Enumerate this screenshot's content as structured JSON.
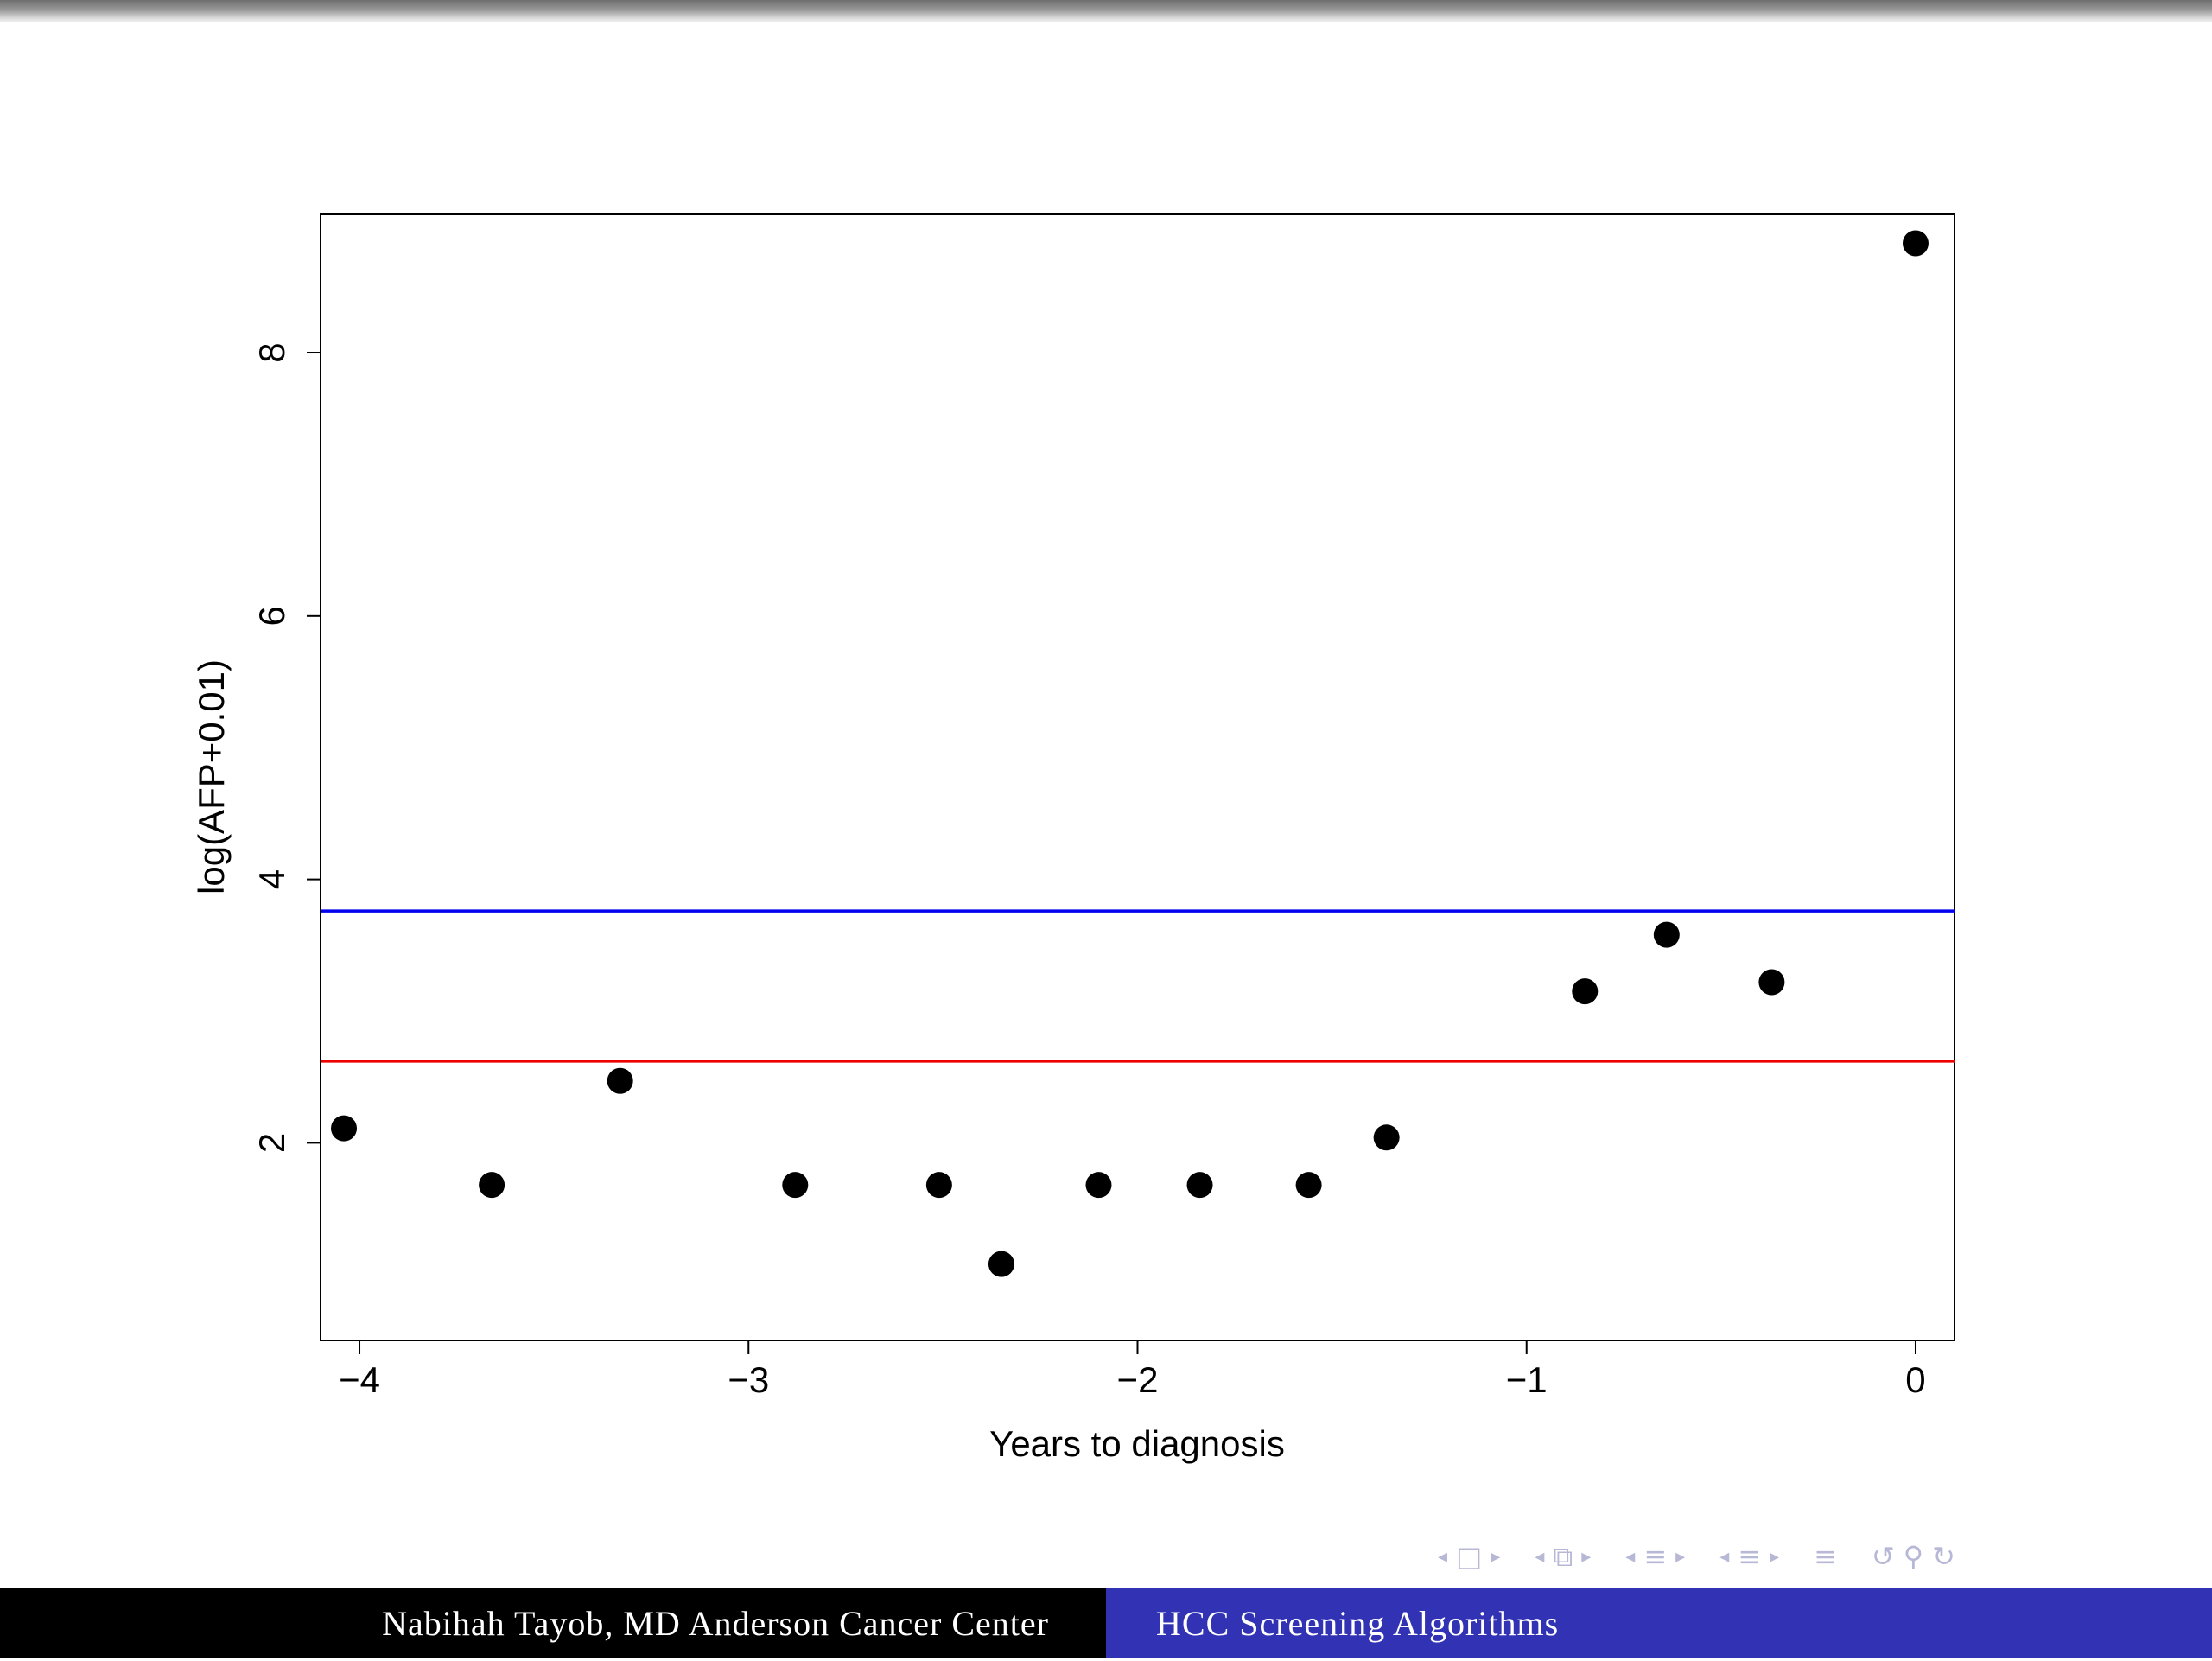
{
  "chart_data": {
    "type": "scatter",
    "title": "",
    "xlabel": "Years to diagnosis",
    "ylabel": "log(AFP+0.01)",
    "xlim": [
      -4.1,
      0.1
    ],
    "ylim": [
      0.5,
      9.05
    ],
    "x_ticks": [
      -4,
      -3,
      -2,
      -1,
      0
    ],
    "x_tick_labels": [
      "−4",
      "−3",
      "−2",
      "−1",
      "0"
    ],
    "y_ticks": [
      2,
      4,
      6,
      8
    ],
    "y_tick_labels": [
      "2",
      "4",
      "6",
      "8"
    ],
    "grid": false,
    "legend": "none",
    "points": [
      {
        "x": -4.04,
        "y": 2.11
      },
      {
        "x": -3.66,
        "y": 1.68
      },
      {
        "x": -3.33,
        "y": 2.47
      },
      {
        "x": -2.88,
        "y": 1.68
      },
      {
        "x": -2.51,
        "y": 1.68
      },
      {
        "x": -2.35,
        "y": 1.08
      },
      {
        "x": -2.1,
        "y": 1.68
      },
      {
        "x": -1.84,
        "y": 1.68
      },
      {
        "x": -1.56,
        "y": 1.68
      },
      {
        "x": -1.36,
        "y": 2.04
      },
      {
        "x": -0.85,
        "y": 3.15
      },
      {
        "x": -0.64,
        "y": 3.58
      },
      {
        "x": -0.37,
        "y": 3.22
      },
      {
        "x": 0.0,
        "y": 8.83
      }
    ],
    "hlines": [
      {
        "y": 3.76,
        "color": "#0000ee"
      },
      {
        "y": 2.62,
        "color": "#ee0000"
      }
    ],
    "point_color": "#000000"
  },
  "footer": {
    "left": "Nabihah Tayob, MD Anderson Cancer Center",
    "right": "HCC Screening Algorithms"
  },
  "colors": {
    "footer_left_bg": "#000000",
    "footer_right_bg": "#3232b4",
    "nav_symbols": "#b7b7d6"
  }
}
